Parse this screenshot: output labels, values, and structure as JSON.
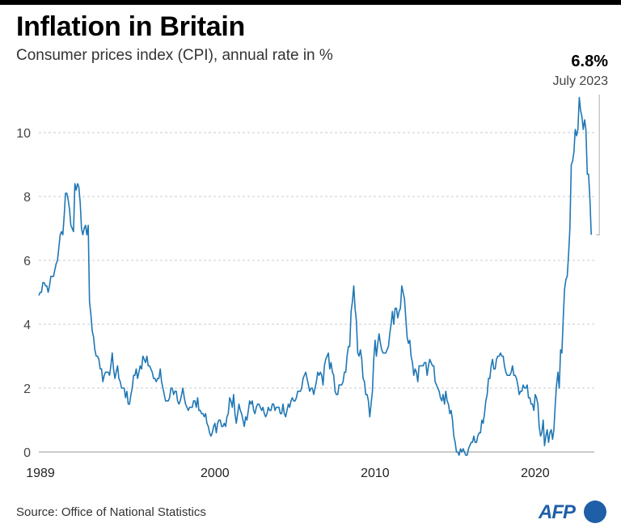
{
  "title": "Inflation  in Britain",
  "subtitle": "Consumer prices index (CPI), annual rate in %",
  "source": "Source: Office of National Statistics",
  "logo": "AFP",
  "colors": {
    "line": "#1f77b4",
    "grid": "#bbbbbb",
    "logo": "#1f5fa8"
  },
  "chart_data": {
    "type": "line",
    "title": "Inflation  in Britain",
    "subtitle": "Consumer prices index (CPI), annual rate in %",
    "xlabel": "",
    "ylabel": "",
    "xlim": [
      1989,
      2023.6
    ],
    "ylim": [
      0,
      11
    ],
    "x_ticks": [
      1989,
      2000,
      2010,
      2020
    ],
    "x_tick_labels": [
      "1989",
      "2000",
      "2010",
      "2020"
    ],
    "y_ticks": [
      0,
      2,
      4,
      6,
      8,
      10
    ],
    "y_tick_labels": [
      "0",
      "2",
      "4",
      "6",
      "8",
      "10"
    ],
    "grid": "horizontal dashed",
    "annotation": {
      "value": "6.8%",
      "date": "July 2023",
      "x": 2023.54,
      "y": 6.8
    },
    "series": [
      {
        "name": "CPI annual rate (%)",
        "x_start": 1989.0,
        "step": "monthly",
        "values": [
          4.9,
          5.0,
          5.0,
          5.3,
          5.3,
          5.2,
          5.2,
          5.0,
          5.2,
          5.5,
          5.5,
          5.5,
          5.7,
          5.9,
          6.0,
          6.4,
          6.8,
          6.9,
          6.8,
          7.4,
          8.1,
          8.1,
          7.9,
          7.6,
          7.1,
          7.0,
          6.9,
          8.4,
          8.2,
          8.4,
          8.3,
          7.8,
          7.0,
          6.8,
          7.0,
          7.1,
          6.8,
          7.1,
          4.7,
          4.3,
          3.8,
          3.6,
          3.2,
          3.0,
          3.0,
          2.9,
          2.6,
          2.6,
          2.2,
          2.4,
          2.5,
          2.5,
          2.5,
          2.4,
          2.7,
          3.1,
          2.6,
          2.3,
          2.5,
          2.7,
          2.3,
          2.2,
          2.0,
          2.0,
          2.0,
          1.7,
          1.9,
          1.5,
          1.5,
          1.8,
          2.0,
          2.4,
          2.4,
          2.6,
          2.3,
          2.5,
          2.7,
          2.6,
          3.0,
          2.9,
          2.8,
          3.0,
          2.7,
          2.7,
          2.6,
          2.5,
          2.3,
          2.3,
          2.2,
          2.3,
          2.3,
          2.6,
          2.2,
          2.0,
          1.8,
          1.6,
          1.6,
          1.6,
          1.7,
          2.0,
          2.0,
          1.8,
          1.9,
          1.9,
          1.6,
          1.5,
          1.6,
          1.8,
          2.0,
          1.7,
          1.5,
          1.4,
          1.3,
          1.4,
          1.4,
          1.4,
          1.6,
          1.6,
          1.4,
          1.7,
          1.3,
          1.3,
          1.2,
          1.2,
          1.1,
          1.2,
          0.9,
          0.8,
          0.6,
          0.5,
          0.6,
          0.8,
          0.9,
          0.6,
          0.9,
          1.0,
          1.0,
          0.8,
          0.8,
          0.9,
          0.8,
          1.1,
          1.2,
          1.7,
          1.6,
          1.4,
          1.8,
          1.2,
          0.9,
          1.2,
          1.5,
          1.3,
          1.2,
          1.0,
          0.8,
          1.1,
          1.0,
          1.3,
          1.6,
          1.5,
          1.6,
          1.3,
          1.2,
          1.4,
          1.5,
          1.5,
          1.4,
          1.3,
          1.4,
          1.2,
          1.1,
          1.2,
          1.4,
          1.3,
          1.3,
          1.5,
          1.5,
          1.3,
          1.4,
          1.4,
          1.4,
          1.2,
          1.2,
          1.5,
          1.2,
          1.1,
          1.3,
          1.5,
          1.4,
          1.6,
          1.7,
          1.6,
          1.6,
          1.7,
          1.9,
          1.9,
          1.9,
          2.0,
          2.3,
          2.4,
          2.5,
          2.3,
          2.1,
          1.9,
          2.0,
          2.0,
          1.8,
          2.0,
          2.2,
          2.5,
          2.4,
          2.5,
          2.4,
          2.1,
          2.7,
          2.9,
          3.0,
          3.1,
          2.6,
          2.8,
          2.5,
          2.4,
          1.9,
          1.8,
          1.8,
          2.1,
          2.1,
          2.1,
          2.2,
          2.5,
          2.5,
          3.0,
          3.3,
          3.3,
          4.4,
          4.7,
          5.2,
          4.5,
          4.1,
          3.1,
          3.0,
          3.2,
          2.9,
          2.3,
          2.2,
          1.8,
          1.8,
          1.6,
          1.1,
          1.5,
          1.9,
          2.9,
          3.5,
          3.0,
          3.4,
          3.7,
          3.4,
          3.2,
          3.1,
          3.1,
          3.1,
          3.2,
          3.3,
          3.7,
          4.0,
          4.4,
          4.0,
          4.5,
          4.5,
          4.2,
          4.4,
          4.5,
          5.2,
          5.0,
          4.8,
          4.2,
          3.6,
          3.4,
          3.5,
          3.0,
          2.8,
          2.4,
          2.6,
          2.5,
          2.2,
          2.7,
          2.7,
          2.7,
          2.7,
          2.8,
          2.8,
          2.4,
          2.7,
          2.9,
          2.8,
          2.7,
          2.7,
          2.2,
          2.1,
          2.0,
          1.9,
          1.7,
          1.6,
          1.8,
          1.5,
          1.9,
          1.6,
          1.5,
          1.2,
          1.3,
          1.0,
          0.5,
          0.3,
          0.0,
          0.0,
          -0.1,
          0.1,
          0.0,
          0.1,
          0.0,
          -0.1,
          -0.1,
          0.1,
          0.2,
          0.3,
          0.3,
          0.5,
          0.3,
          0.3,
          0.5,
          0.6,
          0.6,
          1.0,
          0.9,
          1.2,
          1.6,
          1.8,
          2.3,
          2.3,
          2.7,
          2.9,
          2.6,
          2.6,
          2.9,
          3.0,
          3.0,
          3.1,
          3.0,
          3.0,
          2.7,
          2.5,
          2.4,
          2.4,
          2.4,
          2.5,
          2.7,
          2.4,
          2.4,
          2.3,
          2.1,
          1.8,
          1.9,
          1.9,
          2.1,
          2.0,
          2.0,
          2.1,
          1.7,
          1.7,
          1.5,
          1.5,
          1.3,
          1.8,
          1.7,
          1.5,
          0.8,
          0.5,
          0.6,
          1.0,
          0.2,
          0.5,
          0.7,
          0.3,
          0.6,
          0.7,
          0.4,
          0.7,
          1.5,
          2.1,
          2.5,
          2.0,
          3.2,
          3.1,
          4.2,
          5.1,
          5.4,
          5.5,
          6.2,
          7.0,
          9.0,
          9.1,
          9.4,
          10.1,
          9.9,
          10.1,
          11.1,
          10.7,
          10.5,
          10.1,
          10.4,
          10.1,
          8.7,
          8.7,
          7.9,
          6.8
        ]
      }
    ]
  }
}
